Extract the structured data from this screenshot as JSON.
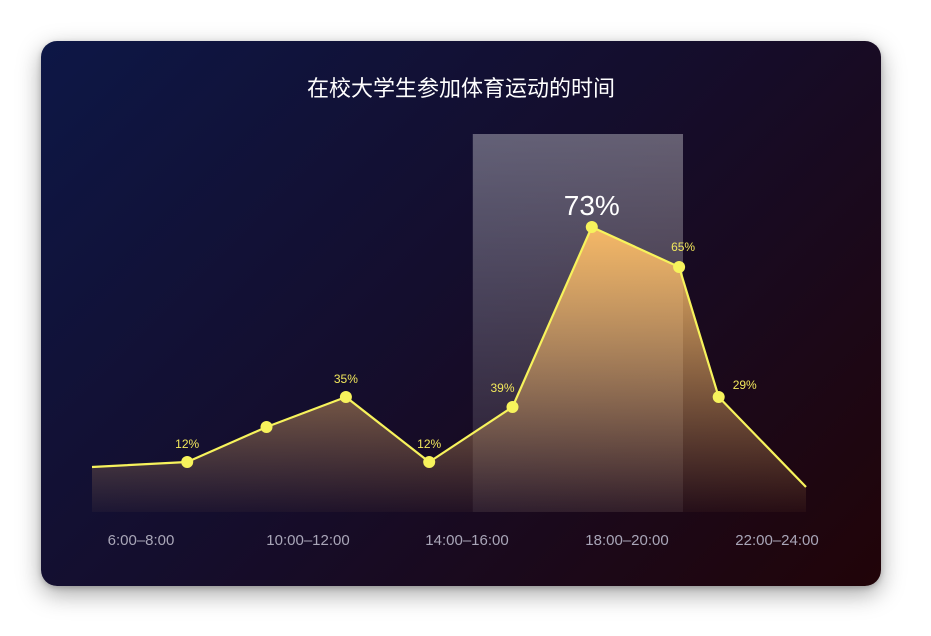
{
  "colors": {
    "card_gradient": [
      "#0d1746",
      "#150d2b",
      "#210408"
    ],
    "line": "#f7f35c",
    "area_top": "#f5b866",
    "highlight_band": "#ffffff",
    "title": "#ffffff",
    "tick": "#a9a6b8"
  },
  "chart_data": {
    "type": "area",
    "title": "在校大学生参加体育运动的时间",
    "xlabel": "",
    "ylabel": "",
    "ylim": [
      0,
      80
    ],
    "grid": false,
    "x_ticks": [
      "6:00–8:00",
      "10:00–12:00",
      "14:00–16:00",
      "18:00–20:00",
      "22:00–24:00"
    ],
    "highlight_range": [
      "14:00–16:00",
      "20:00"
    ],
    "series": [
      {
        "values": [
          {
            "x": 6.0,
            "y": 9,
            "marker": false
          },
          {
            "x": 8.4,
            "y": 10,
            "marker": true,
            "label": "12%"
          },
          {
            "x": 10.4,
            "y": 17,
            "marker": true
          },
          {
            "x": 12.4,
            "y": 23,
            "marker": true,
            "label": "35%"
          },
          {
            "x": 14.5,
            "y": 10,
            "marker": true,
            "label": "12%"
          },
          {
            "x": 16.6,
            "y": 21,
            "marker": true,
            "label": "39%"
          },
          {
            "x": 18.6,
            "y": 57,
            "marker": true,
            "label": "73%",
            "emphasis": true
          },
          {
            "x": 20.8,
            "y": 49,
            "marker": true,
            "label": "65%"
          },
          {
            "x": 21.8,
            "y": 23,
            "marker": true,
            "label": "29%"
          },
          {
            "x": 24.0,
            "y": 5,
            "marker": false
          }
        ]
      }
    ]
  }
}
